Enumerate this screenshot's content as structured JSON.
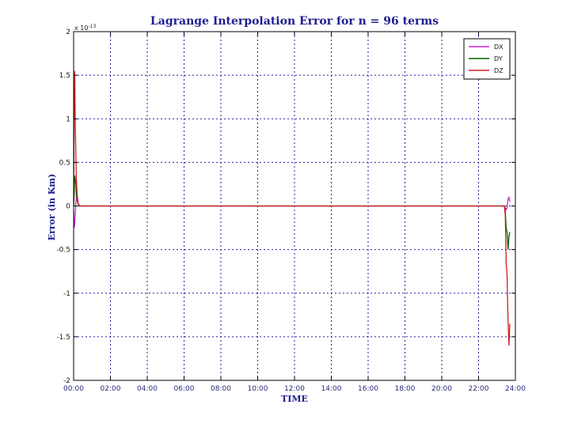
{
  "chart_data": {
    "type": "line",
    "title": "Lagrange Interpolation Error for n = 96 terms",
    "xlabel": "TIME",
    "ylabel": "Error (in Km)",
    "y_exponent": "x 10",
    "y_exponent_power": "-13",
    "xlim": [
      0,
      24
    ],
    "ylim": [
      -2,
      2
    ],
    "x_ticks": [
      0,
      2,
      4,
      6,
      8,
      10,
      12,
      14,
      16,
      18,
      20,
      22,
      24
    ],
    "x_tick_labels": [
      "00:00",
      "02:00",
      "04:00",
      "06:00",
      "08:00",
      "10:00",
      "12:00",
      "14:00",
      "16:00",
      "18:00",
      "20:00",
      "22:00",
      "24:00"
    ],
    "y_ticks": [
      -2,
      -1.5,
      -1,
      -0.5,
      0,
      0.5,
      1,
      1.5,
      2
    ],
    "y_tick_labels": [
      "-2",
      "-1.5",
      "-1",
      "-0.5",
      "0",
      "0.5",
      "1",
      "1.5",
      "2"
    ],
    "grid": true,
    "legend_position": "top-right",
    "series": [
      {
        "name": "DX",
        "color": "#d020d0",
        "x": [
          0,
          0.03,
          0.06,
          0.09,
          0.12,
          0.15,
          0.2,
          0.25,
          0.3,
          0.35,
          0.4,
          0.5,
          0.6,
          1,
          23.3,
          23.4,
          23.45,
          23.5,
          23.55,
          23.6,
          23.65,
          23.7
        ],
        "y": [
          -0.05,
          -0.25,
          -0.2,
          -0.1,
          0.05,
          0.1,
          0.05,
          0.02,
          0.01,
          0,
          0,
          0,
          0,
          0,
          0,
          0,
          -0.02,
          -0.04,
          -0.02,
          0.08,
          0.1,
          0.05
        ]
      },
      {
        "name": "DY",
        "color": "#006400",
        "x": [
          0,
          0.03,
          0.06,
          0.09,
          0.12,
          0.15,
          0.18,
          0.22,
          0.26,
          0.3,
          0.35,
          0.4,
          0.5,
          0.6,
          1,
          23.3,
          23.4,
          23.45,
          23.5,
          23.55,
          23.6,
          23.65,
          23.7
        ],
        "y": [
          0,
          0.15,
          0.35,
          0.3,
          0.25,
          0.1,
          0.15,
          0.05,
          0.02,
          0,
          0,
          0,
          0,
          0,
          0,
          0,
          0,
          -0.05,
          -0.25,
          -0.3,
          -0.5,
          -0.35,
          -0.3
        ]
      },
      {
        "name": "DZ",
        "color": "#cc2020",
        "x": [
          0,
          0.03,
          0.06,
          0.09,
          0.12,
          0.15,
          0.2,
          0.25,
          0.3,
          0.35,
          0.4,
          0.5,
          0.6,
          1,
          23.3,
          23.4,
          23.45,
          23.5,
          23.55,
          23.6,
          23.65,
          23.7
        ],
        "y": [
          0.05,
          1.15,
          1.55,
          0.95,
          0.6,
          0.3,
          0.1,
          0.03,
          0.01,
          0,
          0,
          0,
          0,
          0,
          0,
          0,
          -0.1,
          -0.65,
          -0.8,
          -1.3,
          -1.6,
          -1.35
        ]
      }
    ]
  }
}
